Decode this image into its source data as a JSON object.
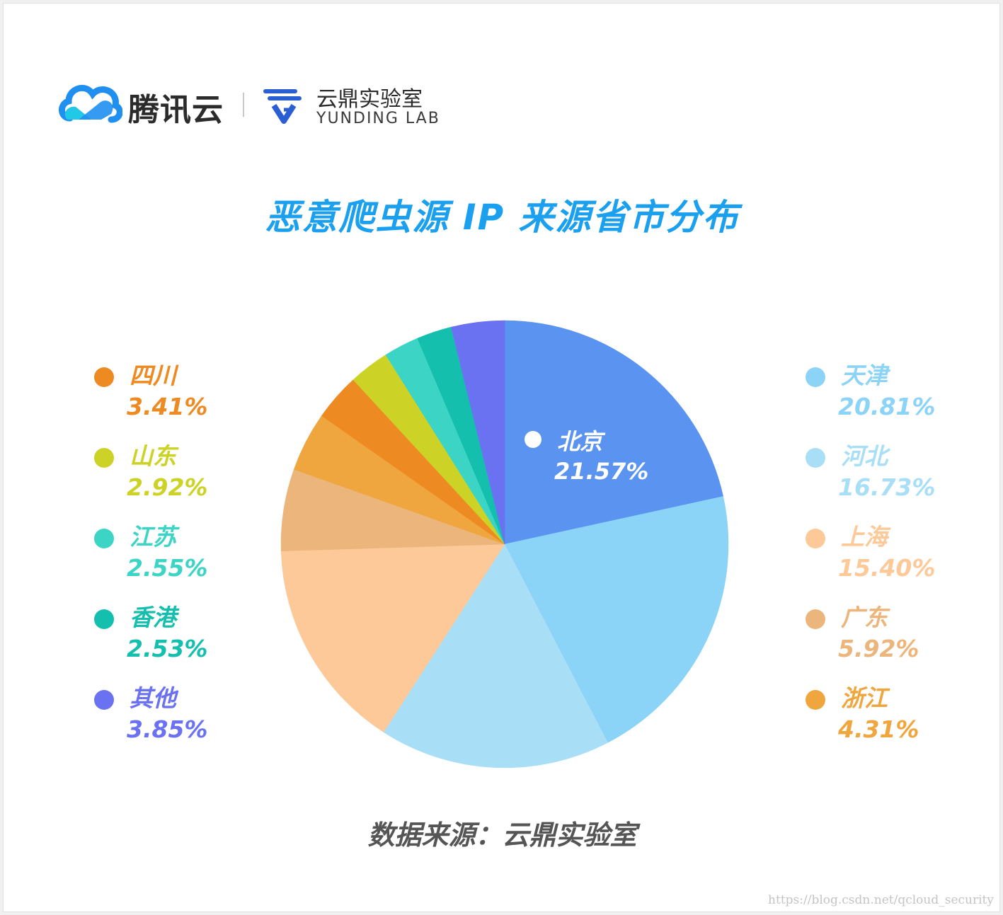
{
  "header": {
    "brand_name": "腾讯云",
    "lab_name": "云鼎实验室",
    "lab_name_en": "YUNDING LAB"
  },
  "colors": {
    "title": "#1aa0ee",
    "brand_blue": "#1f8ff0",
    "brand_cyan": "#22c9e6",
    "lab_blue": "#2a5fd3"
  },
  "chart_data": {
    "type": "pie",
    "title": "恶意爬虫源 IP 来源省市分布",
    "start_angle_deg": 0,
    "direction": "clockwise",
    "slices": [
      {
        "name": "北京",
        "value": 21.57,
        "label": "21.57%",
        "color": "#5b93f0"
      },
      {
        "name": "天津",
        "value": 20.81,
        "label": "20.81%",
        "color": "#8bd3f7"
      },
      {
        "name": "河北",
        "value": 16.73,
        "label": "16.73%",
        "color": "#a9dff6"
      },
      {
        "name": "上海",
        "value": 15.4,
        "label": "15.40%",
        "color": "#fdc998"
      },
      {
        "name": "广东",
        "value": 5.92,
        "label": "5.92%",
        "color": "#ebb57b"
      },
      {
        "name": "浙江",
        "value": 4.31,
        "label": "4.31%",
        "color": "#f0a63e"
      },
      {
        "name": "四川",
        "value": 3.41,
        "label": "3.41%",
        "color": "#ee8a22"
      },
      {
        "name": "山东",
        "value": 2.92,
        "label": "2.92%",
        "color": "#cdd326"
      },
      {
        "name": "江苏",
        "value": 2.55,
        "label": "2.55%",
        "color": "#3cd5c5"
      },
      {
        "name": "香港",
        "value": 2.53,
        "label": "2.53%",
        "color": "#14bfae"
      },
      {
        "name": "其他",
        "value": 3.85,
        "label": "3.85%",
        "color": "#6b72f2"
      }
    ],
    "inner_label": {
      "name": "北京",
      "label": "21.57%"
    },
    "legend_left": [
      "四川",
      "山东",
      "江苏",
      "香港",
      "其他"
    ],
    "legend_right": [
      "天津",
      "河北",
      "上海",
      "广东",
      "浙江"
    ]
  },
  "source_note": "数据来源：云鼎实验室",
  "watermark": "https://blog.csdn.net/qcloud_security"
}
